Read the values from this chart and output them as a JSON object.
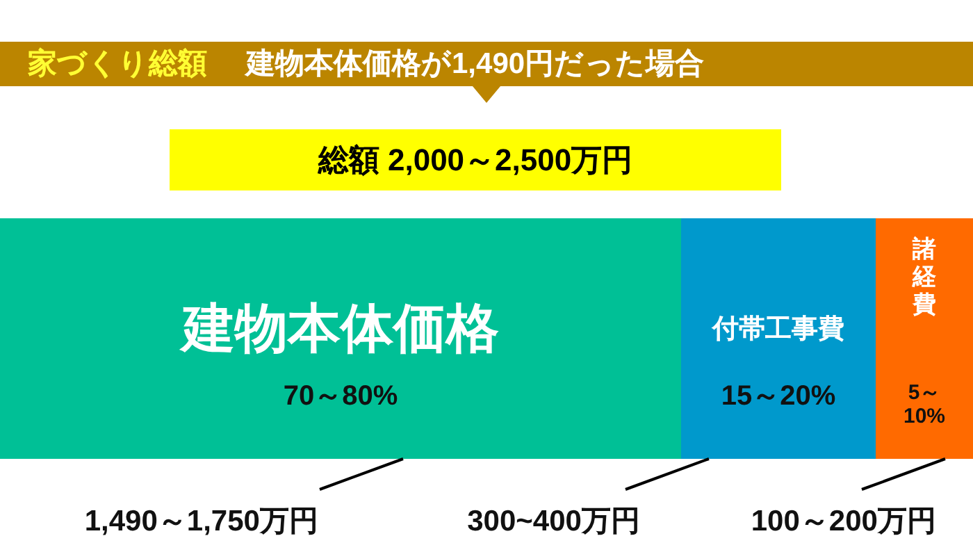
{
  "chart_data": {
    "type": "bar",
    "orientation": "horizontal",
    "stacked": true,
    "legend": false,
    "title": "家づくり総額",
    "subtitle": "建物本体価格が1,490円だった場合",
    "categories": [
      null
    ],
    "xlim": [
      0,
      100
    ],
    "series": [
      {
        "name": "建物本体価格",
        "color": "#00c096",
        "values": [
          70
        ],
        "value_labels": [
          "70～80%"
        ]
      },
      {
        "name": "付帯工事費",
        "color": "#0099cc",
        "values": [
          20
        ],
        "value_labels": [
          "15～20%"
        ]
      },
      {
        "name": "諸経費",
        "color": "#ff6a00",
        "values": [
          10
        ],
        "value_labels": [
          "5～10%"
        ]
      }
    ],
    "annotations": [
      "総額 2,000～2,500万円",
      "1,490～1,750万円",
      "300~400万円",
      "100～200万円"
    ]
  }
}
